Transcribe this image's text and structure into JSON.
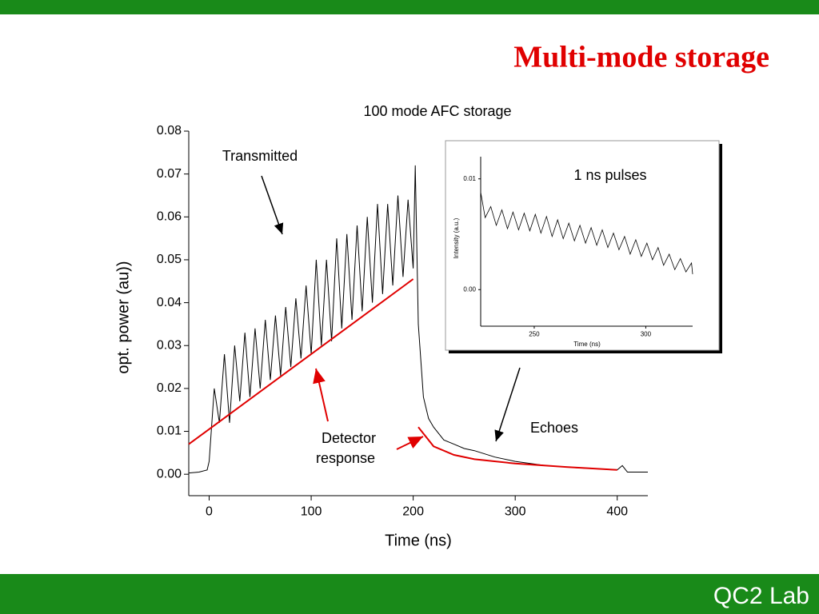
{
  "slide_title": "Multi-mode storage",
  "footer": "QC2 Lab",
  "chart_data": [
    {
      "type": "line",
      "title": "100 mode AFC storage",
      "x_label": "Time (ns)",
      "y_label": "opt. power (au))",
      "xlim": [
        -20,
        430
      ],
      "ylim": [
        -0.005,
        0.08
      ],
      "xticks": [
        0,
        100,
        200,
        300,
        400
      ],
      "yticks": [
        {
          "value": 0,
          "label": "0.00"
        },
        0.01,
        0.02,
        0.03,
        0.04,
        0.05,
        0.06,
        0.07,
        0.08
      ],
      "annotations": [
        "Transmitted",
        "Detector",
        "response",
        "Echoes"
      ],
      "series": [
        {
          "color": "#000000",
          "x": [
            -20,
            -10,
            -2,
            0,
            5,
            10,
            15,
            20,
            25,
            30,
            35,
            40,
            45,
            50,
            55,
            60,
            65,
            70,
            75,
            80,
            85,
            90,
            95,
            100,
            105,
            110,
            115,
            120,
            125,
            130,
            135,
            140,
            145,
            150,
            155,
            160,
            165,
            170,
            175,
            180,
            185,
            190,
            195,
            200,
            202,
            205,
            210,
            215,
            220,
            230,
            240,
            250,
            260,
            280,
            300,
            330,
            360,
            400,
            405,
            410,
            430
          ],
          "values": [
            0.0003,
            0.0005,
            0.001,
            0.003,
            0.02,
            0.012,
            0.028,
            0.012,
            0.03,
            0.017,
            0.033,
            0.018,
            0.034,
            0.02,
            0.036,
            0.022,
            0.037,
            0.023,
            0.039,
            0.025,
            0.041,
            0.027,
            0.044,
            0.028,
            0.05,
            0.03,
            0.05,
            0.031,
            0.055,
            0.034,
            0.056,
            0.036,
            0.058,
            0.038,
            0.06,
            0.04,
            0.063,
            0.042,
            0.063,
            0.044,
            0.065,
            0.046,
            0.064,
            0.048,
            0.072,
            0.035,
            0.018,
            0.013,
            0.011,
            0.008,
            0.007,
            0.006,
            0.0055,
            0.004,
            0.003,
            0.002,
            0.0015,
            0.001,
            0.002,
            0.0005,
            0.0005
          ]
        },
        {
          "color": "#e00000",
          "x": [
            -20,
            200
          ],
          "values": [
            0.007,
            0.0455
          ]
        },
        {
          "color": "#e00000",
          "x": [
            205,
            220,
            240,
            260,
            300,
            350,
            400
          ],
          "values": [
            0.011,
            0.0065,
            0.0045,
            0.0035,
            0.0025,
            0.0017,
            0.001
          ]
        }
      ]
    },
    {
      "type": "line",
      "title": "1 ns pulses",
      "x_label": "Time (ns)",
      "y_label": "Intensity (a.u.)",
      "xlim": [
        226,
        321
      ],
      "ylim": [
        -0.0033,
        0.012
      ],
      "xticks": [
        250,
        300
      ],
      "yticks": [
        {
          "value": 0,
          "label": "0.00"
        },
        0.01
      ],
      "series": [
        {
          "color": "#000000",
          "x": [
            226,
            228,
            230.5,
            233,
            235.5,
            238,
            240.5,
            243,
            245.5,
            248,
            250.5,
            253,
            255.5,
            258,
            260.5,
            263,
            265.5,
            268,
            270.5,
            273,
            275.5,
            278,
            280.5,
            283,
            285.5,
            288,
            290.5,
            293,
            295.5,
            298,
            300.5,
            303,
            305.5,
            308,
            310.5,
            313,
            315.5,
            318,
            320.5,
            321
          ],
          "values": [
            0.0088,
            0.0065,
            0.0075,
            0.0058,
            0.0072,
            0.0055,
            0.007,
            0.0054,
            0.0069,
            0.0053,
            0.0068,
            0.0051,
            0.0066,
            0.0048,
            0.0063,
            0.0046,
            0.006,
            0.0044,
            0.0058,
            0.0042,
            0.0056,
            0.004,
            0.0054,
            0.0038,
            0.0051,
            0.0036,
            0.0048,
            0.0032,
            0.0045,
            0.003,
            0.0042,
            0.0027,
            0.0038,
            0.0022,
            0.0032,
            0.0018,
            0.0028,
            0.0016,
            0.0024,
            0.0014
          ]
        }
      ]
    }
  ]
}
